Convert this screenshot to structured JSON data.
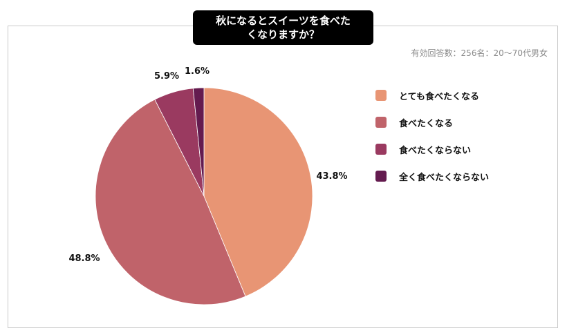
{
  "title_line1": "秋になるとスイーツを食べた",
  "title_line2": "くなりますか？",
  "note": "有効回答数：256名：20〜70代男女",
  "chart_data": {
    "type": "pie",
    "title": "秋になるとスイーツを食べたくなりますか？",
    "slices": [
      {
        "label": "とても食べたくなる",
        "value": 43.8,
        "display": "43.8%",
        "color": "#E89574"
      },
      {
        "label": "食べたくなる",
        "value": 48.8,
        "display": "48.8%",
        "color": "#C0636A"
      },
      {
        "label": "食べたくならない",
        "value": 5.9,
        "display": "5.9%",
        "color": "#9A3A60"
      },
      {
        "label": "全く食べたくならない",
        "value": 1.6,
        "display": "1.6%",
        "color": "#641B4F"
      }
    ],
    "legend_position": "right"
  }
}
